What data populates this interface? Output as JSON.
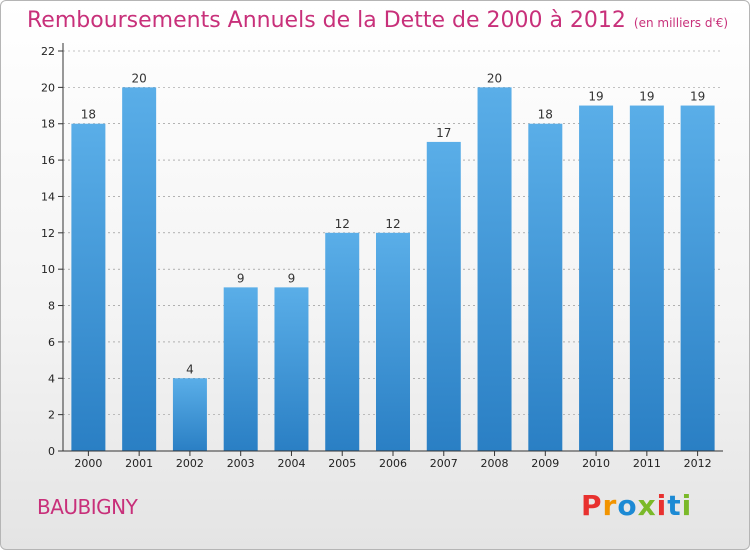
{
  "header": {
    "title": "Remboursements Annuels de la Dette de 2000 à 2012",
    "subtitle": "(en milliers d'€)"
  },
  "footer": {
    "commune": "BAUBIGNY",
    "logo_text": "Proxiti",
    "logo_colors": [
      "#e8312f",
      "#f29400",
      "#1c8ad4",
      "#7ab929",
      "#e8312f",
      "#1c8ad4",
      "#7ab929"
    ]
  },
  "colors": {
    "title": "#c8307a",
    "bar_light": "#5aaee8",
    "bar_dark": "#2a7fc4",
    "axis": "#333333",
    "grid": "#888888"
  },
  "chart_data": {
    "type": "bar",
    "categories": [
      "2000",
      "2001",
      "2002",
      "2003",
      "2004",
      "2005",
      "2006",
      "2007",
      "2008",
      "2009",
      "2010",
      "2011",
      "2012"
    ],
    "values": [
      18,
      20,
      4,
      9,
      9,
      12,
      12,
      17,
      20,
      18,
      19,
      19,
      19
    ],
    "title": "Remboursements Annuels de la Dette de 2000 à 2012",
    "subtitle": "(en milliers d'€)",
    "ylim": [
      0,
      22
    ],
    "yticks": [
      0,
      2,
      4,
      6,
      8,
      10,
      12,
      14,
      16,
      18,
      20,
      22
    ],
    "grid": "horizontal dashed",
    "legend": "none"
  }
}
